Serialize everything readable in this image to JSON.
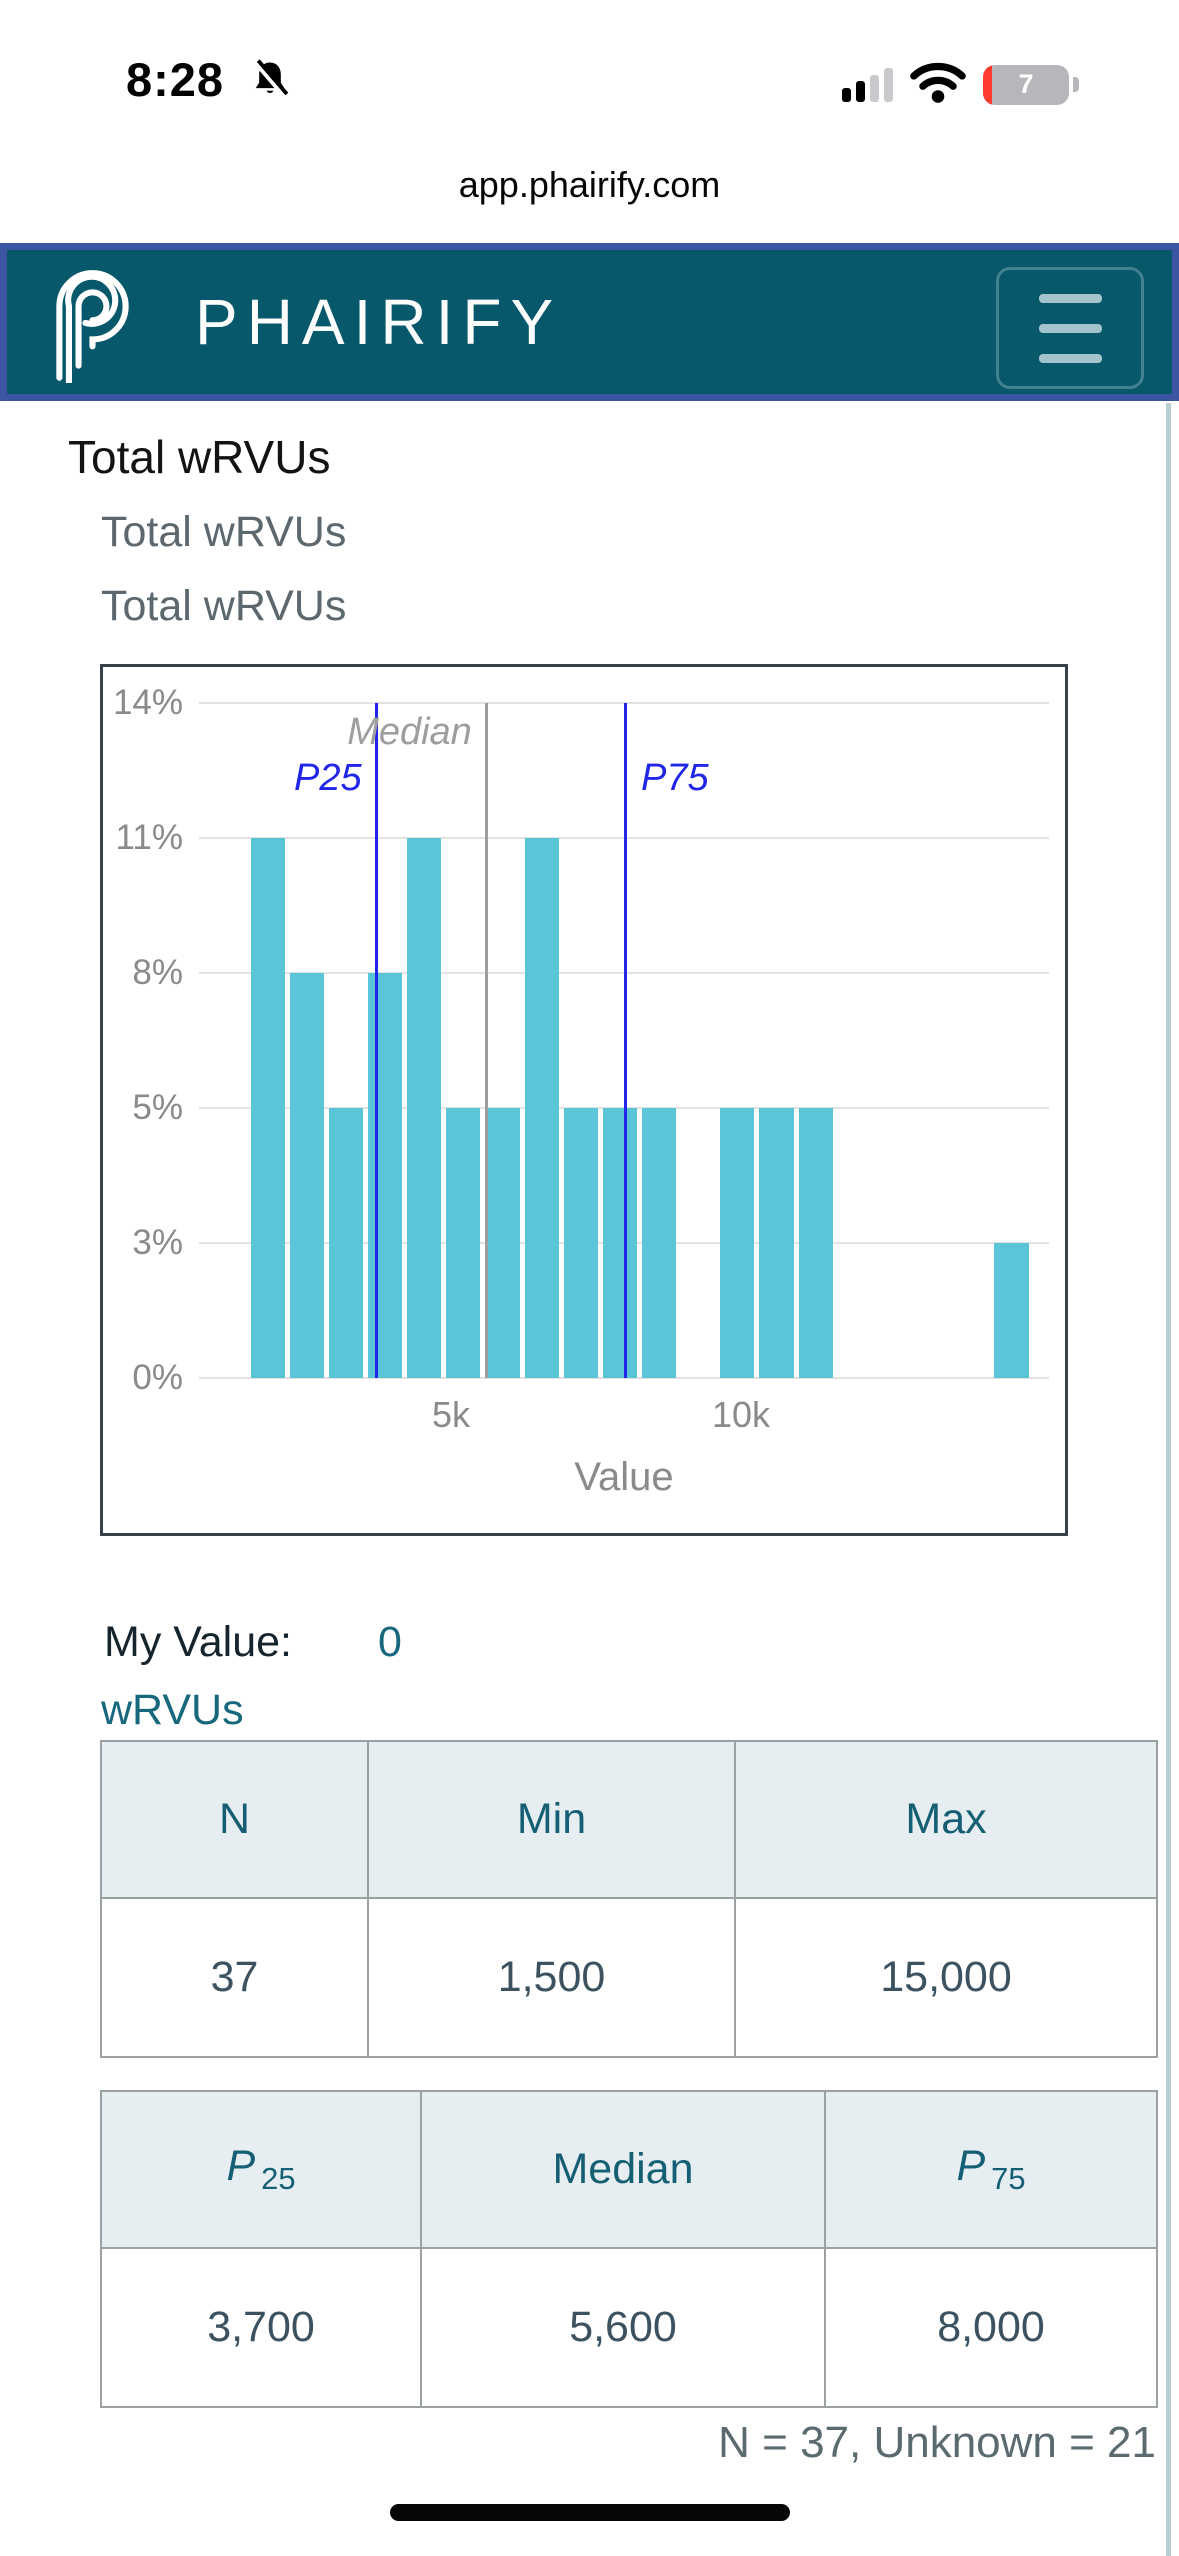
{
  "status_bar": {
    "time": "8:28",
    "battery_percent": "7"
  },
  "browser": {
    "url": "app.phairify.com"
  },
  "header": {
    "brand": "PHAIRIFY"
  },
  "page": {
    "title": "Total wRVUs",
    "subtitle1": "Total wRVUs",
    "subtitle2": "Total wRVUs",
    "my_value_label": "My Value:",
    "my_value": "0",
    "my_value_unit": "wRVUs",
    "summary_note": "N = 37, Unknown = 21"
  },
  "stats_table": {
    "headers": [
      "N",
      "Min",
      "Max"
    ],
    "values": [
      "37",
      "1,500",
      "15,000"
    ]
  },
  "percentile_table": {
    "headers": [
      {
        "base": "P",
        "sub": "25"
      },
      {
        "base": "Median",
        "sub": ""
      },
      {
        "base": "P",
        "sub": "75"
      }
    ],
    "values": [
      "3,700",
      "5,600",
      "8,000"
    ]
  },
  "chart_data": {
    "type": "bar",
    "title": "",
    "xlabel": "Value",
    "ylabel": "",
    "y_ticks": [
      "0%",
      "3%",
      "5%",
      "8%",
      "11%",
      "14%"
    ],
    "percent_per_step": 2.7,
    "x_ticks": [
      {
        "value": 5000,
        "label": "5k"
      },
      {
        "value": 10000,
        "label": "10k"
      }
    ],
    "x_range": [
      655,
      15310
    ],
    "bins_start": 1500,
    "bin_width": 675,
    "bar_percents": [
      11,
      8,
      5,
      8,
      11,
      5,
      5,
      11,
      5,
      5,
      5,
      0,
      5,
      5,
      5,
      0,
      0,
      0,
      0,
      3
    ],
    "bar_color": "#5bc5d8",
    "grid": true,
    "markers": [
      {
        "name": "P25",
        "value": 3700,
        "color": "#2126e8",
        "label_side": "left"
      },
      {
        "name": "Median",
        "value": 5600,
        "color": "#9e9e9e",
        "label_side": "left"
      },
      {
        "name": "P75",
        "value": 8000,
        "color": "#2126e8",
        "label_side": "right"
      }
    ],
    "stats": {
      "n": 37,
      "unknown": 21,
      "min": 1500,
      "max": 15000,
      "p25": 3700,
      "median": 5600,
      "p75": 8000
    }
  },
  "colors": {
    "header_bg": "#07586a",
    "header_border": "#3b55a2",
    "accent_teal": "#155f75",
    "bar_cyan": "#5bc5d8",
    "marker_blue": "#2126e8",
    "battery_red": "#ff3b30"
  }
}
